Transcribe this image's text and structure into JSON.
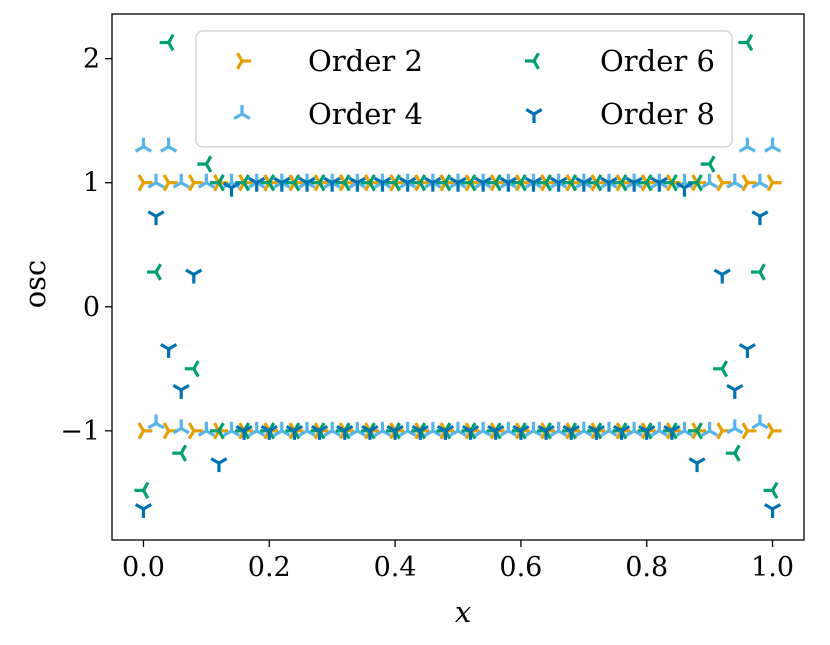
{
  "chart_data": {
    "type": "scatter",
    "xlabel": "x",
    "ylabel": "osc",
    "xlim": [
      -0.05,
      1.05
    ],
    "ylim": [
      -1.88,
      2.36
    ],
    "xticks": [
      0.0,
      0.2,
      0.4,
      0.6,
      0.8,
      1.0
    ],
    "xtick_labels": [
      "0.0",
      "0.2",
      "0.4",
      "0.6",
      "0.8",
      "1.0"
    ],
    "yticks": [
      -1,
      0,
      1,
      2
    ],
    "ytick_labels": [
      "−1",
      "0",
      "1",
      "2"
    ],
    "grid": false,
    "legend": {
      "placement": "top-center",
      "columns": 2
    },
    "series": [
      {
        "name": "Order 2",
        "color": "#E69F00",
        "marker": "tri-right",
        "x": [
          0.0,
          0.04,
          0.08,
          0.12,
          0.16,
          0.2,
          0.24,
          0.28,
          0.32,
          0.36,
          0.4,
          0.44,
          0.48,
          0.52,
          0.56,
          0.6,
          0.64,
          0.68,
          0.72,
          0.76,
          0.8,
          0.84,
          0.88,
          0.92,
          0.96,
          1.0,
          0.0,
          0.04,
          0.08,
          0.12,
          0.16,
          0.2,
          0.24,
          0.28,
          0.32,
          0.36,
          0.4,
          0.44,
          0.48,
          0.52,
          0.56,
          0.6,
          0.64,
          0.68,
          0.72,
          0.76,
          0.8,
          0.84,
          0.88,
          0.92,
          0.96,
          1.0
        ],
        "y": [
          1,
          1,
          1,
          1,
          1,
          1,
          1,
          1,
          1,
          1,
          1,
          1,
          1,
          1,
          1,
          1,
          1,
          1,
          1,
          1,
          1,
          1,
          1,
          1,
          1,
          1,
          -1,
          -1,
          -1,
          -1,
          -1,
          -1,
          -1,
          -1,
          -1,
          -1,
          -1,
          -1,
          -1,
          -1,
          -1,
          -1,
          -1,
          -1,
          -1,
          -1,
          -1,
          -1,
          -1,
          -1,
          -1,
          -1
        ]
      },
      {
        "name": "Order 4",
        "color": "#56B4E9",
        "marker": "tri-up",
        "x": [
          0.0,
          0.02,
          0.04,
          0.06,
          0.1,
          0.14,
          0.18,
          0.22,
          0.26,
          0.3,
          0.34,
          0.38,
          0.42,
          0.46,
          0.5,
          0.54,
          0.58,
          0.62,
          0.66,
          0.7,
          0.74,
          0.78,
          0.82,
          0.86,
          0.9,
          0.94,
          0.96,
          0.98,
          1.0,
          0.02,
          0.06,
          0.1,
          0.14,
          0.18,
          0.22,
          0.26,
          0.3,
          0.34,
          0.38,
          0.42,
          0.46,
          0.5,
          0.54,
          0.58,
          0.62,
          0.66,
          0.7,
          0.74,
          0.78,
          0.82,
          0.86,
          0.9,
          0.94,
          0.98
        ],
        "y": [
          1.29,
          1.0,
          1.29,
          1.0,
          1.0,
          1.0,
          1.0,
          1.0,
          1.0,
          1.0,
          1.0,
          1.0,
          1.0,
          1.0,
          1.0,
          1.0,
          1.0,
          1.0,
          1.0,
          1.0,
          1.0,
          1.0,
          1.0,
          1.0,
          1.0,
          1.0,
          1.29,
          1.0,
          1.29,
          -0.94,
          -0.98,
          -1.0,
          -1.0,
          -1.0,
          -1.0,
          -1.0,
          -1.0,
          -1.0,
          -1.0,
          -1.0,
          -1.0,
          -1.0,
          -1.0,
          -1.0,
          -1.0,
          -1.0,
          -1.0,
          -1.0,
          -1.0,
          -1.0,
          -1.0,
          -1.0,
          -0.98,
          -0.94
        ]
      },
      {
        "name": "Order 6",
        "color": "#009E73",
        "marker": "tri-left",
        "x": [
          0.0,
          0.02,
          0.04,
          0.06,
          0.08,
          0.1,
          0.12,
          0.16,
          0.2,
          0.24,
          0.28,
          0.32,
          0.36,
          0.4,
          0.44,
          0.48,
          0.52,
          0.56,
          0.6,
          0.64,
          0.68,
          0.72,
          0.76,
          0.8,
          0.84,
          0.88,
          0.9,
          0.92,
          0.94,
          0.96,
          0.98,
          1.0,
          0.12,
          0.16,
          0.2,
          0.24,
          0.28,
          0.32,
          0.36,
          0.4,
          0.44,
          0.48,
          0.52,
          0.56,
          0.6,
          0.64,
          0.68,
          0.72,
          0.76,
          0.8,
          0.84,
          0.88
        ],
        "y": [
          -1.48,
          0.28,
          2.13,
          -1.18,
          -0.5,
          1.15,
          1.0,
          1.0,
          1.0,
          1.0,
          1.0,
          1.0,
          1.0,
          1.0,
          1.0,
          1.0,
          1.0,
          1.0,
          1.0,
          1.0,
          1.0,
          1.0,
          1.0,
          1.0,
          1.0,
          1.0,
          1.15,
          -0.5,
          -1.18,
          2.13,
          0.28,
          -1.48,
          -1.0,
          -1.0,
          -1.0,
          -1.0,
          -1.0,
          -1.0,
          -1.0,
          -1.0,
          -1.0,
          -1.0,
          -1.0,
          -1.0,
          -1.0,
          -1.0,
          -1.0,
          -1.0,
          -1.0,
          -1.0,
          -1.0,
          -1.0
        ]
      },
      {
        "name": "Order 8",
        "color": "#0072B2",
        "marker": "tri-down",
        "x": [
          0.0,
          0.02,
          0.04,
          0.06,
          0.08,
          0.12,
          0.14,
          0.18,
          0.22,
          0.26,
          0.3,
          0.34,
          0.38,
          0.42,
          0.46,
          0.5,
          0.54,
          0.58,
          0.62,
          0.66,
          0.7,
          0.74,
          0.78,
          0.82,
          0.86,
          0.88,
          0.92,
          0.94,
          0.96,
          0.98,
          1.0,
          0.16,
          0.2,
          0.24,
          0.28,
          0.32,
          0.36,
          0.4,
          0.44,
          0.48,
          0.52,
          0.56,
          0.6,
          0.64,
          0.68,
          0.72,
          0.76,
          0.8,
          0.84
        ],
        "y": [
          -1.63,
          0.73,
          -0.34,
          -0.67,
          0.26,
          -1.26,
          0.96,
          1.0,
          1.0,
          1.0,
          1.0,
          1.0,
          1.0,
          1.0,
          1.0,
          1.0,
          1.0,
          1.0,
          1.0,
          1.0,
          1.0,
          1.0,
          1.0,
          1.0,
          0.96,
          -1.26,
          0.26,
          -0.67,
          -0.34,
          0.73,
          -1.63,
          -1.0,
          -1.0,
          -1.0,
          -1.0,
          -1.0,
          -1.0,
          -1.0,
          -1.0,
          -1.0,
          -1.0,
          -1.0,
          -1.0,
          -1.0,
          -1.0,
          -1.0,
          -1.0,
          -1.0,
          -1.0
        ]
      }
    ]
  }
}
